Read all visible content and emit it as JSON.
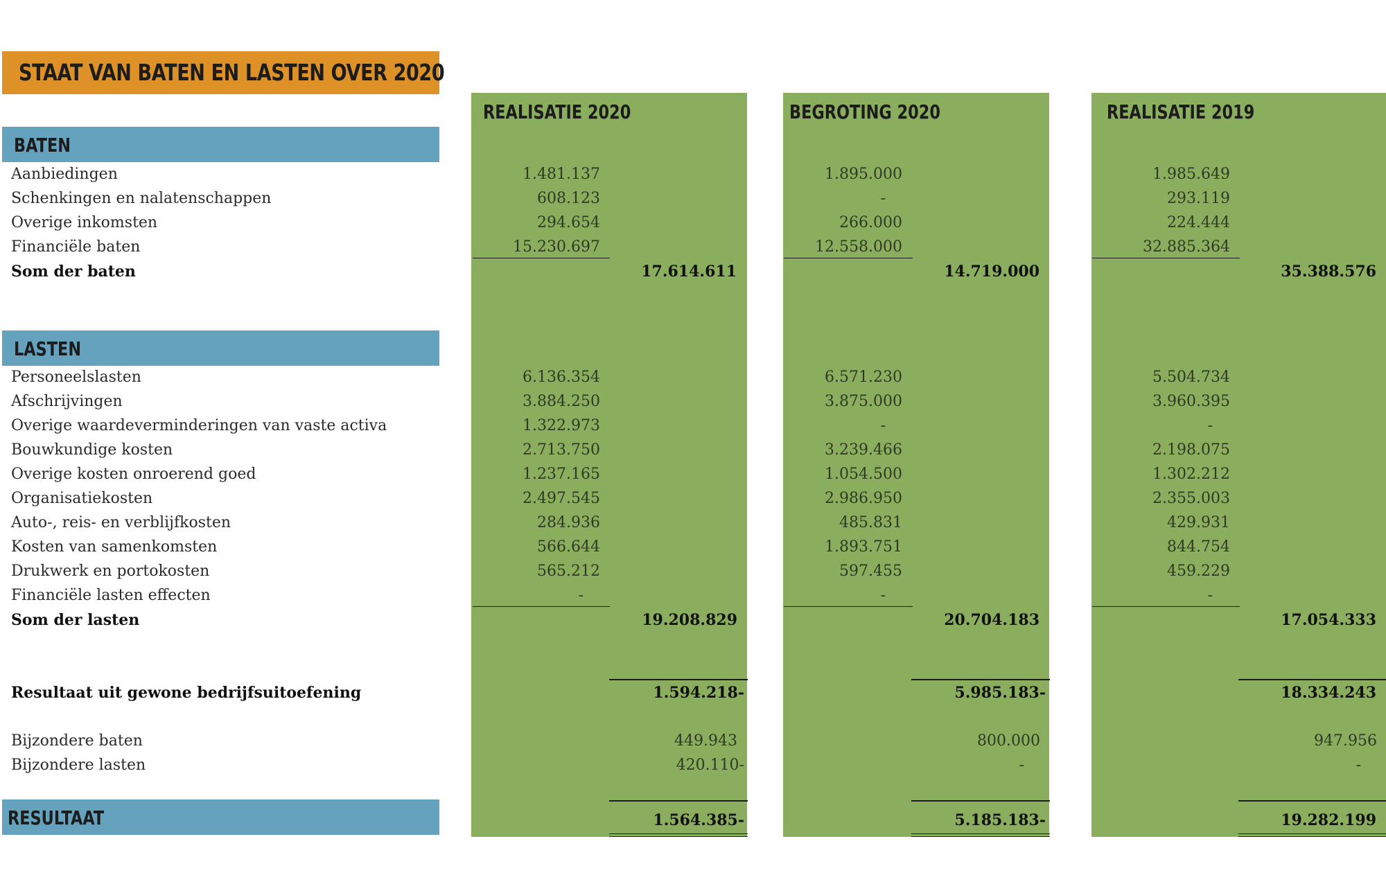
{
  "title": "STAAT VAN BATEN EN LASTEN OVER 2020",
  "columns": [
    "REALISATIE 2020",
    "BEGROTING 2020",
    "REALISATIE 2019"
  ],
  "sections": {
    "baten": "BATEN",
    "lasten": "LASTEN",
    "resultaat": "RESULTAAT"
  },
  "baten_rows": [
    {
      "label": "Aanbiedingen",
      "values": [
        "1.481.137",
        "1.895.000",
        "1.985.649"
      ]
    },
    {
      "label": "Schenkingen en nalatenschappen",
      "values": [
        "608.123",
        "-",
        "293.119"
      ]
    },
    {
      "label": "Overige inkomsten",
      "values": [
        "294.654",
        "266.000",
        "224.444"
      ]
    },
    {
      "label": "Financiële baten",
      "values": [
        "15.230.697",
        "12.558.000",
        "32.885.364"
      ]
    }
  ],
  "som_baten": {
    "label": "Som der baten",
    "values": [
      "17.614.611",
      "14.719.000",
      "35.388.576"
    ]
  },
  "lasten_rows": [
    {
      "label": "Personeelslasten",
      "values": [
        "6.136.354",
        "6.571.230",
        "5.504.734"
      ]
    },
    {
      "label": "Afschrijvingen",
      "values": [
        "3.884.250",
        "3.875.000",
        "3.960.395"
      ]
    },
    {
      "label": "Overige waardeverminderingen van vaste activa",
      "values": [
        "1.322.973",
        "-",
        "-"
      ]
    },
    {
      "label": "Bouwkundige kosten",
      "values": [
        "2.713.750",
        "3.239.466",
        "2.198.075"
      ]
    },
    {
      "label": "Overige kosten onroerend goed",
      "values": [
        "1.237.165",
        "1.054.500",
        "1.302.212"
      ]
    },
    {
      "label": "Organisatiekosten",
      "values": [
        "2.497.545",
        "2.986.950",
        "2.355.003"
      ]
    },
    {
      "label": "Auto-, reis- en verblijfkosten",
      "values": [
        "284.936",
        "485.831",
        "429.931"
      ]
    },
    {
      "label": "Kosten van samenkomsten",
      "values": [
        "566.644",
        "1.893.751",
        "844.754"
      ]
    },
    {
      "label": "Drukwerk en portokosten",
      "values": [
        "565.212",
        "597.455",
        "459.229"
      ]
    },
    {
      "label": "Financiële lasten effecten",
      "values": [
        "-",
        "-",
        "-"
      ]
    }
  ],
  "som_lasten": {
    "label": "Som der lasten",
    "values": [
      "19.208.829",
      "20.704.183",
      "17.054.333"
    ]
  },
  "resultaat_gewoon": {
    "label": "Resultaat uit gewone bedrijfsuitoefening",
    "values": [
      "1.594.218-",
      "5.985.183-",
      "18.334.243"
    ]
  },
  "bijzondere_rows": [
    {
      "label": "Bijzondere baten",
      "values": [
        "449.943",
        "800.000",
        "947.956"
      ]
    },
    {
      "label": "Bijzondere lasten",
      "values": [
        "420.110-",
        "-",
        "-"
      ]
    }
  ],
  "resultaat": {
    "values": [
      "1.564.385-",
      "5.185.183-",
      "19.282.199"
    ]
  }
}
